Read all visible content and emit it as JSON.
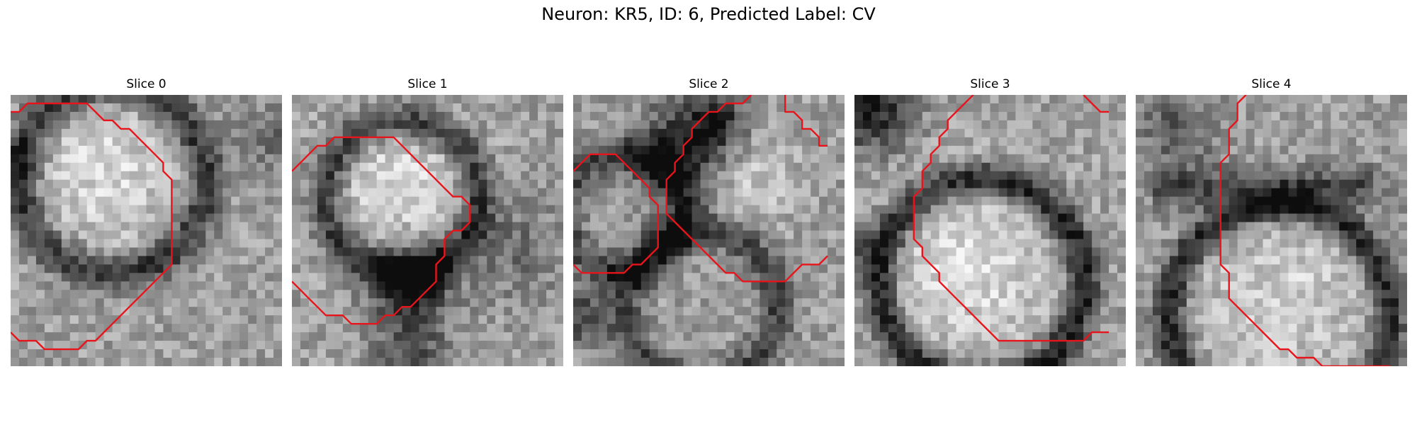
{
  "figure": {
    "title": "Neuron: KR5, ID: 6, Predicted Label: CV"
  },
  "panels": [
    {
      "title": "Slice 0",
      "seed": 11,
      "structure": "ring-upper-left",
      "outline_color": "#e8141c",
      "contours": [
        [
          [
            0,
            2
          ],
          [
            1,
            2
          ],
          [
            2,
            1
          ],
          [
            9,
            1
          ],
          [
            10,
            2
          ],
          [
            11,
            3
          ],
          [
            12,
            3
          ],
          [
            13,
            4
          ],
          [
            14,
            4
          ],
          [
            15,
            5
          ],
          [
            16,
            6
          ],
          [
            17,
            7
          ],
          [
            18,
            8
          ],
          [
            18,
            9
          ],
          [
            19,
            10
          ],
          [
            19,
            20
          ],
          [
            18,
            21
          ],
          [
            17,
            22
          ],
          [
            16,
            23
          ],
          [
            15,
            24
          ],
          [
            14,
            25
          ],
          [
            13,
            26
          ],
          [
            12,
            27
          ],
          [
            11,
            28
          ],
          [
            10,
            29
          ],
          [
            9,
            29
          ],
          [
            8,
            30
          ],
          [
            6,
            30
          ],
          [
            4,
            30
          ],
          [
            3,
            29
          ],
          [
            1,
            29
          ],
          [
            0,
            28
          ]
        ]
      ]
    },
    {
      "title": "Slice 1",
      "seed": 23,
      "structure": "ring-upper",
      "outline_color": "#e8141c",
      "contours": [
        [
          [
            0,
            9
          ],
          [
            1,
            8
          ],
          [
            2,
            7
          ],
          [
            3,
            6
          ],
          [
            4,
            6
          ],
          [
            5,
            5
          ],
          [
            12,
            5
          ],
          [
            13,
            6
          ],
          [
            14,
            7
          ],
          [
            15,
            8
          ],
          [
            16,
            9
          ],
          [
            17,
            10
          ],
          [
            18,
            11
          ],
          [
            19,
            12
          ],
          [
            20,
            12
          ],
          [
            21,
            13
          ],
          [
            21,
            15
          ],
          [
            20,
            16
          ],
          [
            19,
            16
          ],
          [
            18,
            17
          ],
          [
            18,
            19
          ],
          [
            17,
            20
          ],
          [
            17,
            22
          ],
          [
            16,
            23
          ],
          [
            15,
            24
          ],
          [
            14,
            25
          ],
          [
            13,
            25
          ],
          [
            12,
            26
          ],
          [
            11,
            26
          ],
          [
            10,
            27
          ],
          [
            7,
            27
          ],
          [
            6,
            26
          ],
          [
            4,
            26
          ],
          [
            3,
            25
          ],
          [
            2,
            24
          ],
          [
            1,
            23
          ],
          [
            0,
            22
          ]
        ]
      ]
    },
    {
      "title": "Slice 2",
      "seed": 37,
      "structure": "multi-dark",
      "outline_color": "#e8141c",
      "contours": [
        [
          [
            0,
            9
          ],
          [
            1,
            8
          ],
          [
            2,
            7
          ],
          [
            5,
            7
          ],
          [
            6,
            8
          ],
          [
            7,
            9
          ],
          [
            8,
            10
          ],
          [
            9,
            11
          ],
          [
            9,
            12
          ],
          [
            10,
            13
          ],
          [
            10,
            18
          ],
          [
            9,
            19
          ],
          [
            8,
            20
          ],
          [
            7,
            20
          ],
          [
            6,
            21
          ],
          [
            1,
            21
          ],
          [
            0,
            20
          ]
        ],
        [
          [
            21,
            0
          ],
          [
            20,
            1
          ],
          [
            18,
            1
          ],
          [
            17,
            2
          ],
          [
            16,
            2
          ],
          [
            15,
            3
          ],
          [
            14,
            4
          ],
          [
            14,
            5
          ],
          [
            13,
            6
          ],
          [
            13,
            7
          ],
          [
            12,
            8
          ],
          [
            12,
            9
          ],
          [
            11,
            10
          ],
          [
            11,
            14
          ],
          [
            12,
            15
          ],
          [
            13,
            16
          ],
          [
            14,
            17
          ],
          [
            15,
            18
          ],
          [
            16,
            19
          ],
          [
            17,
            20
          ],
          [
            18,
            21
          ],
          [
            19,
            21
          ],
          [
            20,
            22
          ],
          [
            25,
            22
          ],
          [
            26,
            21
          ],
          [
            27,
            20
          ],
          [
            29,
            20
          ],
          [
            30,
            19
          ]
        ],
        [
          [
            25,
            0
          ],
          [
            25,
            2
          ],
          [
            26,
            2
          ],
          [
            27,
            3
          ],
          [
            27,
            4
          ],
          [
            28,
            4
          ],
          [
            29,
            5
          ],
          [
            29,
            6
          ],
          [
            30,
            6
          ]
        ]
      ]
    },
    {
      "title": "Slice 3",
      "seed": 53,
      "structure": "ring-lower",
      "outline_color": "#e8141c",
      "contours": [
        [
          [
            14,
            0
          ],
          [
            13,
            1
          ],
          [
            12,
            2
          ],
          [
            11,
            3
          ],
          [
            11,
            4
          ],
          [
            10,
            5
          ],
          [
            10,
            6
          ],
          [
            9,
            7
          ],
          [
            9,
            8
          ],
          [
            8,
            9
          ],
          [
            8,
            11
          ],
          [
            7,
            12
          ],
          [
            7,
            17
          ],
          [
            8,
            18
          ],
          [
            8,
            19
          ],
          [
            9,
            20
          ],
          [
            10,
            21
          ],
          [
            10,
            22
          ],
          [
            11,
            23
          ],
          [
            12,
            24
          ],
          [
            13,
            25
          ],
          [
            14,
            26
          ],
          [
            15,
            27
          ],
          [
            16,
            28
          ],
          [
            17,
            29
          ],
          [
            27,
            29
          ],
          [
            28,
            28
          ],
          [
            30,
            28
          ]
        ],
        [
          [
            27,
            0
          ],
          [
            28,
            1
          ],
          [
            29,
            2
          ],
          [
            30,
            2
          ]
        ]
      ]
    },
    {
      "title": "Slice 4",
      "seed": 71,
      "structure": "ring-low-band",
      "outline_color": "#e8141c",
      "contours": [
        [
          [
            13,
            0
          ],
          [
            12,
            1
          ],
          [
            12,
            3
          ],
          [
            11,
            4
          ],
          [
            11,
            7
          ],
          [
            10,
            8
          ],
          [
            10,
            20
          ],
          [
            11,
            21
          ],
          [
            11,
            24
          ],
          [
            12,
            25
          ],
          [
            13,
            26
          ],
          [
            14,
            27
          ],
          [
            15,
            28
          ],
          [
            16,
            29
          ],
          [
            17,
            30
          ],
          [
            18,
            30
          ],
          [
            19,
            31
          ],
          [
            21,
            31
          ],
          [
            22,
            32
          ],
          [
            30,
            32
          ]
        ]
      ]
    }
  ]
}
